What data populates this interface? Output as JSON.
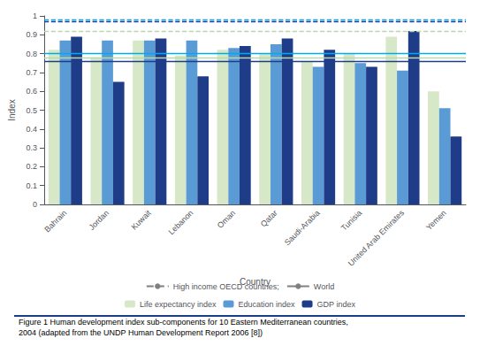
{
  "chart_data": {
    "type": "bar",
    "categories": [
      "Bahrain",
      "Jordan",
      "Kuwait",
      "Lebanon",
      "Oman",
      "Qatar",
      "Saudi-Arabia",
      "Tunisia",
      "United Arab Emirates",
      "Yemen"
    ],
    "series": [
      {
        "name": "Life expectancy index",
        "color": "#d6e8c8",
        "values": [
          0.82,
          0.78,
          0.87,
          0.79,
          0.82,
          0.8,
          0.76,
          0.8,
          0.89,
          0.6
        ]
      },
      {
        "name": "Education index",
        "color": "#5b9bd5",
        "values": [
          0.87,
          0.87,
          0.87,
          0.87,
          0.83,
          0.85,
          0.73,
          0.75,
          0.71,
          0.51
        ]
      },
      {
        "name": "GDP index",
        "color": "#1f3c88",
        "values": [
          0.89,
          0.65,
          0.88,
          0.68,
          0.84,
          0.88,
          0.82,
          0.73,
          0.92,
          0.36
        ]
      }
    ],
    "reference_lines": [
      {
        "name": "High income OECD countries;",
        "line_style": "dashed",
        "values": [
          0.92,
          0.98,
          0.97
        ],
        "colors": [
          "#b8d8b0",
          "#00aaee",
          "#1f3c88"
        ]
      },
      {
        "name": "World",
        "line_style": "solid",
        "values": [
          0.775,
          0.8,
          0.762
        ],
        "colors": [
          "#b8d8b0",
          "#00aaee",
          "#1f3c88"
        ]
      }
    ],
    "xlabel": "Country",
    "ylabel": "Index",
    "ylim": [
      0,
      1.0
    ],
    "yticks": [
      0,
      0.1,
      0.2,
      0.3,
      0.4,
      0.5,
      0.6,
      0.7,
      0.8,
      0.9,
      1
    ],
    "grid": false,
    "caption": "Figure 1 Human development index sub-components for 10 Eastern Mediterranean countries,\n2004 (adapted from the UNDP Human Development Report 2006 [8])"
  }
}
